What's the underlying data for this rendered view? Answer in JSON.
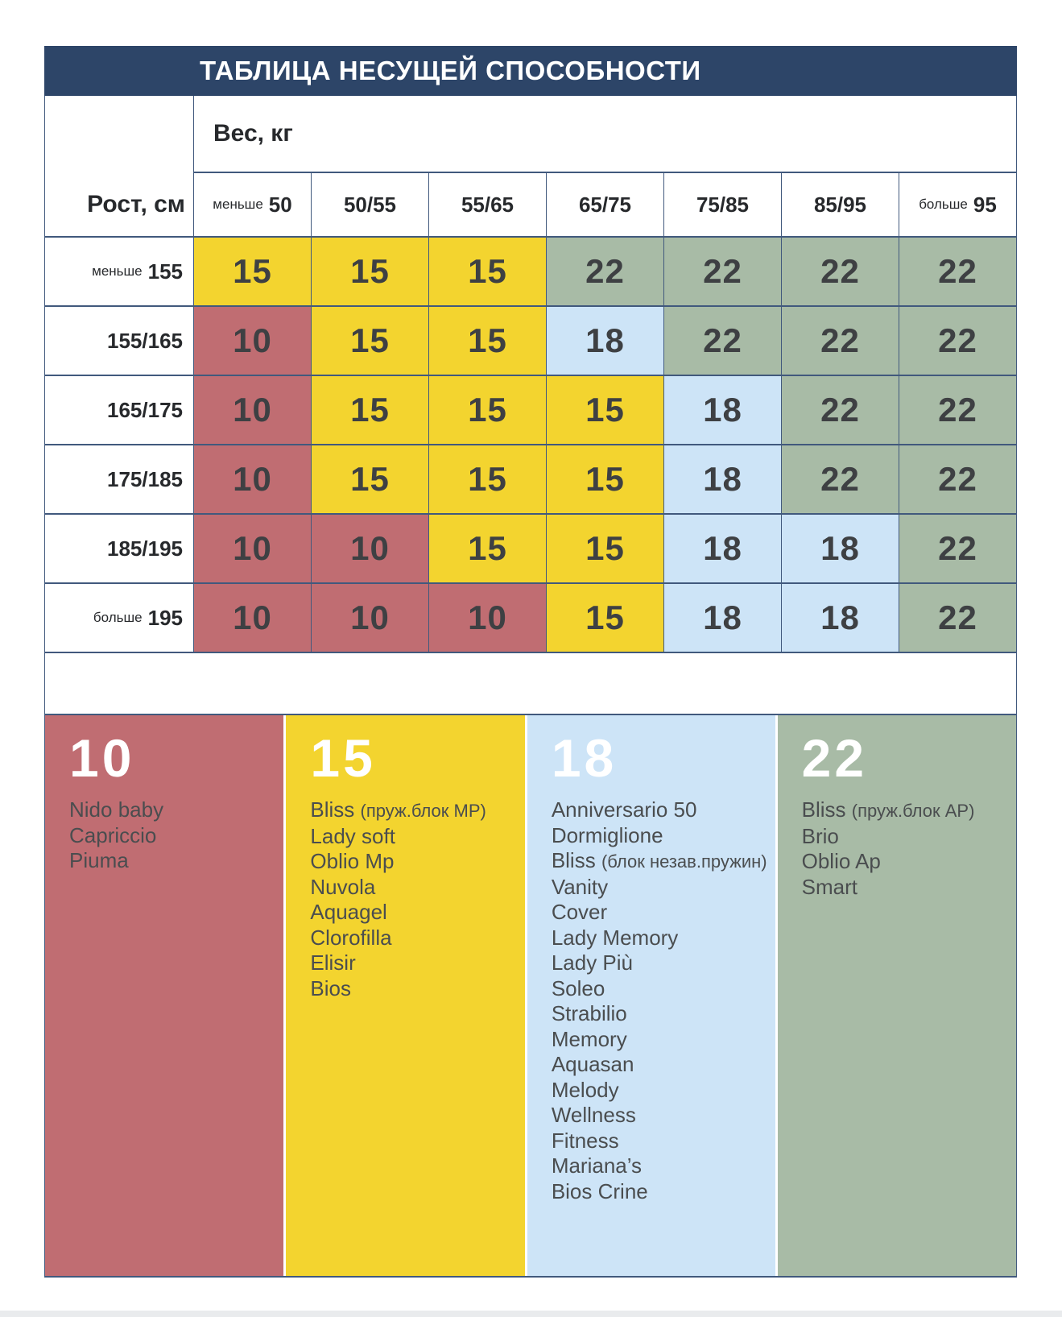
{
  "title": "ТАБЛИЦА НЕСУЩЕЙ СПОСОБНОСТИ",
  "chart_data": {
    "type": "table",
    "title": "ТАБЛИЦА НЕСУЩЕЙ СПОСОБНОСТИ",
    "column_group_label": "Вес, кг",
    "row_group_label": "Рост, см",
    "columns": [
      "меньше 50",
      "50/55",
      "55/65",
      "65/75",
      "75/85",
      "85/95",
      "больше 95"
    ],
    "rows": [
      "меньше 155",
      "155/165",
      "165/175",
      "175/185",
      "185/195",
      "больше 195"
    ],
    "matrix": [
      [
        15,
        15,
        15,
        22,
        22,
        22,
        22
      ],
      [
        10,
        15,
        15,
        18,
        22,
        22,
        22
      ],
      [
        10,
        15,
        15,
        15,
        18,
        22,
        22
      ],
      [
        10,
        15,
        15,
        15,
        18,
        22,
        22
      ],
      [
        10,
        10,
        15,
        15,
        18,
        18,
        22
      ],
      [
        10,
        10,
        10,
        15,
        18,
        18,
        22
      ]
    ],
    "legend": [
      {
        "value": 10,
        "color": "#c06d72",
        "products": [
          "Nido baby",
          "Capriccio",
          "Piuma"
        ]
      },
      {
        "value": 15,
        "color": "#f3d42f",
        "products": [
          "Bliss (пруж.блок MP)",
          "Lady soft",
          "Oblio Mp",
          "Nuvola",
          "Aquagel",
          "Clorofilla",
          "Elisir",
          "Bios"
        ]
      },
      {
        "value": 18,
        "color": "#cde4f7",
        "products": [
          "Anniversario 50",
          "Dormiglione",
          "Bliss (блок незав.пружин)",
          "Vanity",
          "Cover",
          "Lady Memory",
          "Lady Più",
          "Soleo",
          "Strabilio",
          "Memory",
          "Aquasan",
          "Melody",
          "Wellness",
          "Fitness",
          "Mariana’s",
          "Bios Crine"
        ]
      },
      {
        "value": 22,
        "color": "#a8bba6",
        "products": [
          "Bliss (пруж.блок AP)",
          "Brio",
          "Oblio Ap",
          "Smart"
        ]
      }
    ]
  },
  "ui": {
    "colors": {
      "navy": "#2d4568",
      "border": "#41597d",
      "red": "#c06d72",
      "yellow": "#f3d42f",
      "blue": "#cde4f7",
      "green": "#a8bba6",
      "num_text": "#3e4043",
      "label_text": "#27292c",
      "item_text": "#4a4d4f",
      "strip": "#e9ebed"
    },
    "columns": [
      {
        "prefix": "меньше",
        "main": "50"
      },
      {
        "prefix": "",
        "main": "50/55"
      },
      {
        "prefix": "",
        "main": "55/65"
      },
      {
        "prefix": "",
        "main": "65/75"
      },
      {
        "prefix": "",
        "main": "75/85"
      },
      {
        "prefix": "",
        "main": "85/95"
      },
      {
        "prefix": "больше",
        "main": "95"
      }
    ],
    "rows": [
      {
        "prefix": "меньше",
        "main": "155"
      },
      {
        "prefix": "",
        "main": "155/165"
      },
      {
        "prefix": "",
        "main": "165/175"
      },
      {
        "prefix": "",
        "main": "175/185"
      },
      {
        "prefix": "",
        "main": "185/195"
      },
      {
        "prefix": "больше",
        "main": "195"
      }
    ],
    "value_colors": {
      "10": "red",
      "15": "yellow",
      "18": "blue",
      "22": "green"
    },
    "legend_columns": [
      {
        "value": "10",
        "color": "red",
        "items": [
          {
            "name": "Nido baby",
            "note": ""
          },
          {
            "name": "Capriccio",
            "note": ""
          },
          {
            "name": "Piuma",
            "note": ""
          }
        ]
      },
      {
        "value": "15",
        "color": "yellow",
        "items": [
          {
            "name": "Bliss",
            "note": "(пруж.блок MP)"
          },
          {
            "name": "Lady soft",
            "note": ""
          },
          {
            "name": "Oblio Mp",
            "note": ""
          },
          {
            "name": "Nuvola",
            "note": ""
          },
          {
            "name": "Aquagel",
            "note": ""
          },
          {
            "name": "Clorofilla",
            "note": ""
          },
          {
            "name": "Elisir",
            "note": ""
          },
          {
            "name": "Bios",
            "note": ""
          }
        ]
      },
      {
        "value": "18",
        "color": "blue",
        "items": [
          {
            "name": "Anniversario 50",
            "note": ""
          },
          {
            "name": "Dormiglione",
            "note": ""
          },
          {
            "name": "Bliss",
            "note": "(блок незав.пружин)"
          },
          {
            "name": "Vanity",
            "note": ""
          },
          {
            "name": "Cover",
            "note": ""
          },
          {
            "name": "Lady Memory",
            "note": ""
          },
          {
            "name": "Lady Più",
            "note": ""
          },
          {
            "name": "Soleo",
            "note": ""
          },
          {
            "name": "Strabilio",
            "note": ""
          },
          {
            "name": "Memory",
            "note": ""
          },
          {
            "name": "Aquasan",
            "note": ""
          },
          {
            "name": "Melody",
            "note": ""
          },
          {
            "name": "Wellness",
            "note": ""
          },
          {
            "name": "Fitness",
            "note": ""
          },
          {
            "name": "Mariana’s",
            "note": ""
          },
          {
            "name": "Bios Crine",
            "note": ""
          }
        ]
      },
      {
        "value": "22",
        "color": "green",
        "items": [
          {
            "name": "Bliss",
            "note": "(пруж.блок AP)"
          },
          {
            "name": "Brio",
            "note": ""
          },
          {
            "name": "Oblio Ap",
            "note": ""
          },
          {
            "name": "Smart",
            "note": ""
          }
        ]
      }
    ]
  }
}
